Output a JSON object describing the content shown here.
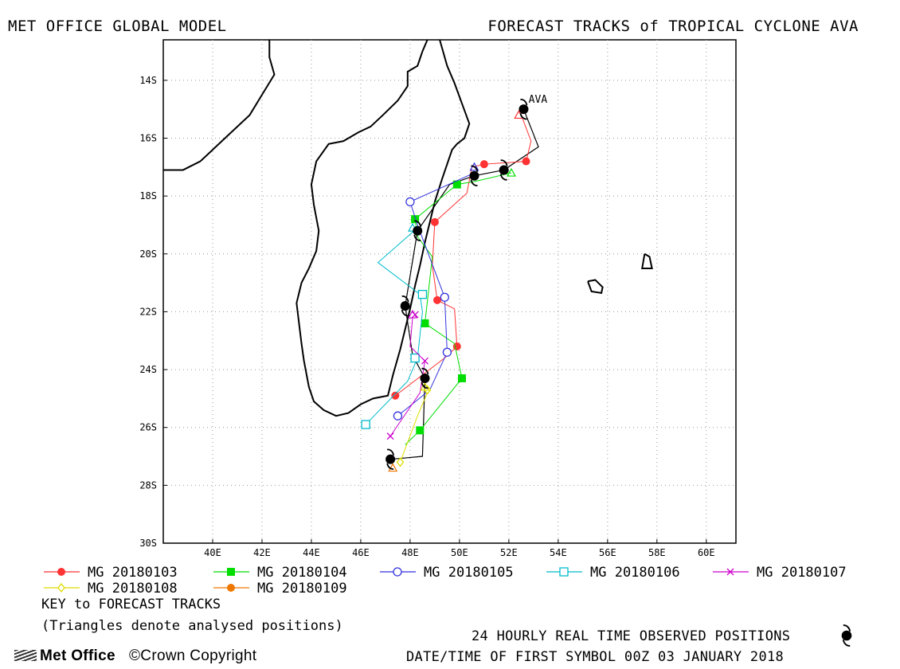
{
  "header": {
    "left_title": "MET OFFICE GLOBAL MODEL",
    "right_title": "FORECAST TRACKS of TROPICAL CYCLONE AVA"
  },
  "map": {
    "lon_range": [
      38,
      61.2
    ],
    "lat_range": [
      -30,
      -12.6
    ],
    "x_ticks": [
      {
        "lon": 40,
        "label": "40E"
      },
      {
        "lon": 42,
        "label": "42E"
      },
      {
        "lon": 44,
        "label": "44E"
      },
      {
        "lon": 46,
        "label": "46E"
      },
      {
        "lon": 48,
        "label": "48E"
      },
      {
        "lon": 50,
        "label": "50E"
      },
      {
        "lon": 52,
        "label": "52E"
      },
      {
        "lon": 54,
        "label": "54E"
      },
      {
        "lon": 56,
        "label": "56E"
      },
      {
        "lon": 58,
        "label": "58E"
      },
      {
        "lon": 60,
        "label": "60E"
      }
    ],
    "y_ticks": [
      {
        "lat": -14,
        "label": "14S"
      },
      {
        "lat": -16,
        "label": "16S"
      },
      {
        "lat": -18,
        "label": "18S"
      },
      {
        "lat": -20,
        "label": "20S"
      },
      {
        "lat": -22,
        "label": "22S"
      },
      {
        "lat": -24,
        "label": "24S"
      },
      {
        "lat": -26,
        "label": "26S"
      },
      {
        "lat": -28,
        "label": "28S"
      },
      {
        "lat": -30,
        "label": "30S"
      }
    ],
    "grid": "dotted",
    "storm_label": "AVA",
    "storm_label_lonlat": [
      52.8,
      -15.0
    ],
    "coastlines": [
      {
        "name": "africa-coast",
        "pts": [
          [
            38,
            -17.1
          ],
          [
            38.8,
            -17.1
          ],
          [
            39.5,
            -16.8
          ],
          [
            40.5,
            -16.0
          ],
          [
            41.5,
            -15.2
          ],
          [
            42.0,
            -14.5
          ],
          [
            42.5,
            -13.8
          ],
          [
            42.3,
            -13.2
          ],
          [
            42.3,
            -12.6
          ]
        ]
      },
      {
        "name": "madagascar-coast",
        "pts": [
          [
            49.2,
            -12.6
          ],
          [
            49.5,
            -13.5
          ],
          [
            49.8,
            -14.1
          ],
          [
            50.1,
            -14.8
          ],
          [
            50.4,
            -15.5
          ],
          [
            50.2,
            -16.0
          ],
          [
            49.9,
            -16.2
          ],
          [
            49.7,
            -16.4
          ],
          [
            49.5,
            -16.9
          ],
          [
            49.3,
            -17.4
          ],
          [
            49.0,
            -18.2
          ],
          [
            48.8,
            -18.9
          ],
          [
            48.6,
            -19.6
          ],
          [
            48.4,
            -20.4
          ],
          [
            48.2,
            -21.1
          ],
          [
            48.0,
            -21.9
          ],
          [
            47.8,
            -22.6
          ],
          [
            47.6,
            -23.3
          ],
          [
            47.3,
            -24.2
          ],
          [
            47.1,
            -24.9
          ],
          [
            46.5,
            -25.0
          ],
          [
            46.0,
            -25.2
          ],
          [
            45.5,
            -25.5
          ],
          [
            45.0,
            -25.6
          ],
          [
            44.5,
            -25.4
          ],
          [
            44.1,
            -25.1
          ],
          [
            43.9,
            -24.6
          ],
          [
            43.7,
            -23.7
          ],
          [
            43.6,
            -23.1
          ],
          [
            43.5,
            -22.4
          ],
          [
            43.4,
            -21.7
          ],
          [
            43.6,
            -21.0
          ],
          [
            43.9,
            -20.5
          ],
          [
            44.2,
            -19.9
          ],
          [
            44.3,
            -19.2
          ],
          [
            44.1,
            -18.3
          ],
          [
            44.0,
            -17.6
          ],
          [
            44.2,
            -16.8
          ],
          [
            44.7,
            -16.2
          ],
          [
            45.3,
            -16.1
          ],
          [
            45.9,
            -15.8
          ],
          [
            46.4,
            -15.6
          ],
          [
            46.9,
            -15.2
          ],
          [
            47.5,
            -14.7
          ],
          [
            47.9,
            -14.2
          ],
          [
            47.9,
            -13.7
          ],
          [
            48.3,
            -13.5
          ],
          [
            48.5,
            -13.0
          ],
          [
            48.7,
            -12.6
          ]
        ]
      },
      {
        "name": "reunion-island",
        "pts": [
          [
            55.2,
            -20.95
          ],
          [
            55.5,
            -20.9
          ],
          [
            55.8,
            -21.15
          ],
          [
            55.75,
            -21.35
          ],
          [
            55.35,
            -21.3
          ],
          [
            55.2,
            -20.95
          ]
        ]
      },
      {
        "name": "mauritius-island",
        "pts": [
          [
            57.5,
            -20.0
          ],
          [
            57.7,
            -20.1
          ],
          [
            57.8,
            -20.5
          ],
          [
            57.4,
            -20.5
          ],
          [
            57.5,
            -20.0
          ]
        ]
      }
    ],
    "observed_track": [
      [
        52.6,
        -15.0
      ],
      [
        53.2,
        -16.3
      ],
      [
        51.8,
        -17.1
      ],
      [
        50.6,
        -17.3
      ],
      [
        49.6,
        -17.6
      ],
      [
        48.3,
        -19.2
      ],
      [
        47.8,
        -21.8
      ],
      [
        48.1,
        -23.5
      ],
      [
        48.6,
        -24.3
      ],
      [
        48.5,
        -27.0
      ],
      [
        47.2,
        -27.1
      ]
    ],
    "observed_positions": [
      [
        52.6,
        -15.0
      ],
      [
        51.8,
        -17.1
      ],
      [
        50.6,
        -17.3
      ],
      [
        48.3,
        -19.2
      ],
      [
        47.8,
        -21.8
      ],
      [
        48.6,
        -24.3
      ],
      [
        47.2,
        -27.1
      ]
    ],
    "observed_symbol_color": "#000000"
  },
  "chart_data": {
    "type": "scatter",
    "title": "FORECAST TRACKS of TROPICAL CYCLONE AVA",
    "xlabel": "",
    "ylabel": "",
    "x_units": "longitude (E)",
    "y_units": "latitude (negative = S)",
    "xlim": [
      38,
      61.2
    ],
    "ylim": [
      -30,
      -12.6
    ],
    "grid": true,
    "series": [
      {
        "name": "MG 20180103",
        "color": "#ff3333",
        "marker": "filled-circle",
        "points": [
          [
            52.5,
            -15.2
          ],
          [
            52.9,
            -16.1
          ],
          [
            52.7,
            -16.8
          ],
          [
            51.0,
            -16.9
          ],
          [
            50.5,
            -17.0
          ],
          [
            50.3,
            -17.9
          ],
          [
            49.0,
            -18.9
          ],
          [
            48.9,
            -20.4
          ],
          [
            49.1,
            -21.6
          ],
          [
            49.8,
            -21.9
          ],
          [
            49.9,
            -23.2
          ],
          [
            49.4,
            -23.6
          ],
          [
            47.4,
            -24.9
          ]
        ],
        "markers": [
          [
            52.7,
            -16.8
          ],
          [
            51.0,
            -16.9
          ],
          [
            49.0,
            -18.9
          ],
          [
            49.1,
            -21.6
          ],
          [
            49.9,
            -23.2
          ],
          [
            47.4,
            -24.9
          ]
        ]
      },
      {
        "name": "MG 20180104",
        "color": "#00dd00",
        "marker": "filled-square",
        "points": [
          [
            52.1,
            -17.2
          ],
          [
            50.6,
            -17.5
          ],
          [
            49.9,
            -17.6
          ],
          [
            48.2,
            -18.8
          ],
          [
            48.3,
            -19.4
          ],
          [
            48.9,
            -20.1
          ],
          [
            48.6,
            -22.4
          ],
          [
            49.8,
            -23.1
          ],
          [
            50.1,
            -24.3
          ],
          [
            48.4,
            -26.1
          ],
          [
            47.8,
            -26.6
          ]
        ],
        "markers": [
          [
            49.9,
            -17.6
          ],
          [
            48.2,
            -18.8
          ],
          [
            48.6,
            -22.4
          ],
          [
            50.1,
            -24.3
          ],
          [
            48.4,
            -26.1
          ]
        ]
      },
      {
        "name": "MG 20180105",
        "color": "#3333dd",
        "marker": "open-circle",
        "points": [
          [
            50.6,
            -17.2
          ],
          [
            48.0,
            -18.2
          ],
          [
            48.3,
            -19.0
          ],
          [
            49.4,
            -21.5
          ],
          [
            49.5,
            -23.4
          ],
          [
            48.8,
            -24.7
          ],
          [
            47.5,
            -25.6
          ]
        ],
        "markers": [
          [
            48.0,
            -18.2
          ],
          [
            49.4,
            -21.5
          ],
          [
            49.5,
            -23.4
          ],
          [
            47.5,
            -25.6
          ]
        ]
      },
      {
        "name": "MG 20180106",
        "color": "#00bbcc",
        "marker": "open-square",
        "points": [
          [
            48.3,
            -19.1
          ],
          [
            46.7,
            -20.3
          ],
          [
            48.4,
            -21.4
          ],
          [
            48.5,
            -22.0
          ],
          [
            48.3,
            -23.6
          ],
          [
            47.9,
            -24.4
          ],
          [
            46.2,
            -25.9
          ]
        ],
        "markers": [
          [
            48.5,
            -21.4
          ],
          [
            48.2,
            -23.6
          ],
          [
            46.2,
            -25.9
          ]
        ]
      },
      {
        "name": "MG 20180107",
        "color": "#cc00cc",
        "marker": "x",
        "points": [
          [
            48.1,
            -22.2
          ],
          [
            48.0,
            -23.2
          ],
          [
            48.6,
            -23.7
          ],
          [
            48.4,
            -24.8
          ],
          [
            47.2,
            -26.3
          ]
        ],
        "markers": [
          [
            48.2,
            -22.1
          ],
          [
            48.6,
            -23.7
          ],
          [
            47.2,
            -26.3
          ]
        ]
      },
      {
        "name": "MG 20180108",
        "color": "#dddd00",
        "marker": "open-diamond",
        "points": [
          [
            48.7,
            -24.8
          ],
          [
            48.3,
            -25.6
          ],
          [
            47.6,
            -27.2
          ]
        ],
        "markers": [
          [
            48.7,
            -24.7
          ],
          [
            47.6,
            -27.2
          ]
        ]
      },
      {
        "name": "MG 20180109",
        "color": "#ee7700",
        "marker": "filled-circle",
        "points": [
          [
            47.3,
            -27.4
          ]
        ],
        "markers": []
      }
    ],
    "analysed_positions": [
      {
        "color": "#ff3333",
        "lonlat": [
          52.4,
          -15.2
        ]
      },
      {
        "color": "#00dd00",
        "lonlat": [
          52.1,
          -17.2
        ]
      },
      {
        "color": "#3333dd",
        "lonlat": [
          50.6,
          -17.0
        ]
      },
      {
        "color": "#00bbcc",
        "lonlat": [
          48.1,
          -19.1
        ]
      },
      {
        "color": "#cc00cc",
        "lonlat": [
          48.1,
          -22.1
        ]
      },
      {
        "color": "#dddd00",
        "lonlat": [
          48.6,
          -24.6
        ]
      },
      {
        "color": "#ee7700",
        "lonlat": [
          47.3,
          -27.4
        ]
      }
    ]
  },
  "legend": {
    "key_title": "KEY to FORECAST TRACKS",
    "note": "(Triangles denote analysed positions)"
  },
  "footer": {
    "observed_label": "24 HOURLY REAL TIME OBSERVED POSITIONS",
    "logo_text": "Met Office",
    "copyright": "©Crown Copyright",
    "datetime": "DATE/TIME OF FIRST SYMBOL 00Z 03 JANUARY 2018"
  }
}
